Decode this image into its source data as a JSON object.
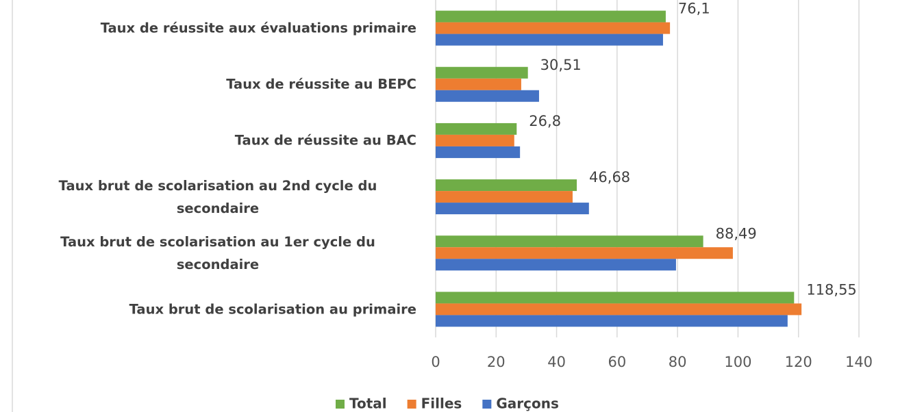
{
  "chart_data": {
    "type": "barh",
    "categories": [
      "Taux de réussite aux évaluations primaire",
      "Taux de réussite au BEPC",
      "Taux de réussite au BAC",
      "Taux brut de scolarisation au 2nd cycle du secondaire",
      "Taux brut de scolarisation au 1er cycle du secondaire",
      "Taux brut de scolarisation au primaire"
    ],
    "series": [
      {
        "name": "Total",
        "color": "#70ad47",
        "values": [
          76.1,
          30.51,
          26.8,
          46.68,
          88.49,
          118.55
        ],
        "value_labels": [
          "76,1",
          "30,51",
          "26,8",
          "46,68",
          "88,49",
          "118,55"
        ]
      },
      {
        "name": "Filles",
        "color": "#ed7d31",
        "values": [
          77.5,
          28.3,
          26.0,
          45.3,
          98.3,
          121.0
        ]
      },
      {
        "name": "Garçons",
        "color": "#4472c4",
        "values": [
          75.2,
          34.2,
          27.9,
          50.7,
          79.5,
          116.4
        ]
      }
    ],
    "xlim": [
      0,
      140
    ],
    "xticks": [
      0,
      20,
      40,
      60,
      80,
      100,
      120,
      140
    ],
    "grid": true,
    "legend": "bottom"
  }
}
